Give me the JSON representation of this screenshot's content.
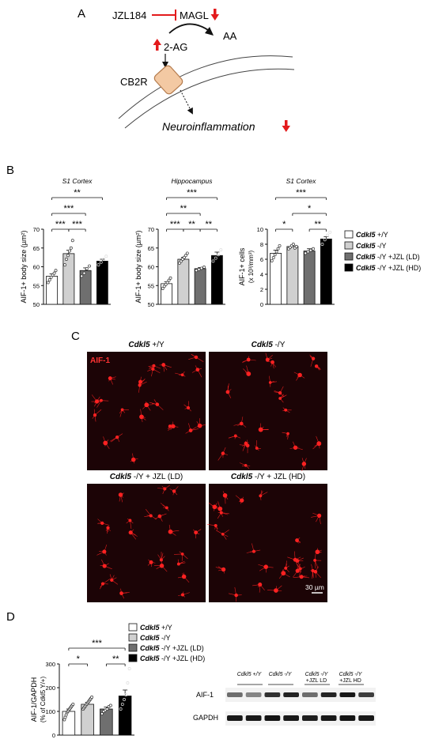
{
  "colors": {
    "wt": "#ffffff",
    "ko": "#d0d0d0",
    "ld": "#6f6f6f",
    "hd": "#000000",
    "arrow_red": "#e31a1c",
    "cb2r_fill": "#f3c9a3",
    "cb2r_stroke": "#b57c4e",
    "micro_bg": "#1c0406",
    "micro_cell": "#ff2222",
    "aif_label": "#ff3333"
  },
  "panelA": {
    "label": "A",
    "jzl": "JZL184",
    "magl": "MAGL",
    "aa": "AA",
    "two_ag": "2-AG",
    "cb2r": "CB2R",
    "neuro": "Neuroinflammation"
  },
  "panelB": {
    "label": "B"
  },
  "panelC": {
    "label": "C",
    "stain": "AIF-1",
    "titles": [
      {
        "gene": "Cdkl5",
        "rest": " +/Y"
      },
      {
        "gene": "Cdkl5",
        "rest": " -/Y"
      },
      {
        "gene": "Cdkl5",
        "rest": " -/Y + JZL (LD)"
      },
      {
        "gene": "Cdkl5",
        "rest": " -/Y + JZL (HD)"
      }
    ],
    "scale": "30 µm"
  },
  "panelD": {
    "label": "D"
  },
  "legend": {
    "gene": "Cdkl5",
    "entries": [
      " +/Y",
      " -/Y",
      " -/Y +JZL (LD)",
      " -/Y +JZL (HD)"
    ]
  },
  "chart_data": [
    {
      "type": "bar",
      "title": "S1 Cortex",
      "ylabel": "AIF-1+ body size (µm²)",
      "ylim": [
        50,
        70
      ],
      "yticks": [
        "50",
        "55",
        "60",
        "65",
        "70"
      ],
      "categories": [
        "Cdkl5 +/Y",
        "Cdkl5 -/Y",
        "Cdkl5 -/Y +JZL (LD)",
        "Cdkl5 -/Y +JZL (HD)"
      ],
      "values": [
        57.5,
        63.5,
        59.0,
        61.5
      ],
      "errors": [
        0.6,
        0.9,
        0.7,
        0.5
      ],
      "points": [
        [
          55.8,
          56.5,
          57.2,
          57.8,
          58.3,
          59.0
        ],
        [
          60.5,
          62.0,
          63.0,
          64.2,
          65.0,
          67.0
        ],
        [
          57.5,
          58.3,
          59.5,
          60.2
        ],
        [
          60.5,
          61.2,
          62.0,
          62.8
        ]
      ],
      "significance": [
        {
          "a": 0,
          "b": 3,
          "label": "**"
        },
        {
          "a": 0,
          "b": 2,
          "label": "***"
        },
        {
          "a": 0,
          "b": 1,
          "label": "***"
        },
        {
          "a": 1,
          "b": 2,
          "label": "***"
        }
      ]
    },
    {
      "type": "bar",
      "title": "Hippocampus",
      "ylabel": "AIF-1+ body size (µm²)",
      "ylim": [
        50,
        70
      ],
      "yticks": [
        "50",
        "55",
        "60",
        "65",
        "70"
      ],
      "categories": [
        "Cdkl5 +/Y",
        "Cdkl5 -/Y",
        "Cdkl5 -/Y +JZL (LD)",
        "Cdkl5 -/Y +JZL (HD)"
      ],
      "values": [
        55.5,
        62.0,
        59.5,
        63.0
      ],
      "errors": [
        0.5,
        0.5,
        0.3,
        0.9
      ],
      "points": [
        [
          54.2,
          54.8,
          55.3,
          55.8,
          56.4,
          57.0
        ],
        [
          61.0,
          61.5,
          62.0,
          62.5,
          63.0,
          63.6
        ],
        [
          59.0,
          59.3,
          59.6,
          59.9
        ],
        [
          61.5,
          62.3,
          63.2,
          64.5
        ]
      ],
      "significance": [
        {
          "a": 0,
          "b": 3,
          "label": "***"
        },
        {
          "a": 0,
          "b": 2,
          "label": "**"
        },
        {
          "a": 0,
          "b": 1,
          "label": "***"
        },
        {
          "a": 1,
          "b": 2,
          "label": "**"
        },
        {
          "a": 2,
          "b": 3,
          "label": "**"
        }
      ]
    },
    {
      "type": "bar",
      "title": "S1 Cortex",
      "ylabel": "AIF-1+ cells",
      "ylabel2": "(x 10³/mm³)",
      "ylim": [
        0,
        10
      ],
      "yticks": [
        "0",
        "2",
        "4",
        "6",
        "8",
        "10"
      ],
      "categories": [
        "Cdkl5 +/Y",
        "Cdkl5 -/Y",
        "Cdkl5 -/Y +JZL (LD)",
        "Cdkl5 -/Y +JZL (HD)"
      ],
      "values": [
        6.8,
        7.7,
        7.1,
        8.7
      ],
      "errors": [
        0.4,
        0.2,
        0.3,
        0.3
      ],
      "points": [
        [
          5.8,
          6.2,
          6.6,
          7.0,
          7.4,
          7.8
        ],
        [
          7.4,
          7.6,
          7.8,
          8.0,
          7.5,
          7.7
        ],
        [
          6.8,
          7.0,
          7.2,
          7.4
        ],
        [
          8.0,
          8.6,
          9.2,
          9.6
        ]
      ],
      "significance": [
        {
          "a": 0,
          "b": 3,
          "label": "***"
        },
        {
          "a": 1,
          "b": 3,
          "label": "*"
        },
        {
          "a": 0,
          "b": 1,
          "label": "*"
        },
        {
          "a": 2,
          "b": 3,
          "label": "**"
        }
      ]
    },
    {
      "type": "bar",
      "title": "",
      "ylabel": "AIF-1/GAPDH",
      "ylabel2": "(% of Cdkl5 Y/+)",
      "ylim": [
        0,
        300
      ],
      "yticks": [
        "0",
        "100",
        "200",
        "300"
      ],
      "categories": [
        "Cdkl5 +/Y",
        "Cdkl5 -/Y",
        "Cdkl5 -/Y +JZL (LD)",
        "Cdkl5 -/Y +JZL (HD)"
      ],
      "values": [
        100,
        130,
        110,
        165
      ],
      "errors": [
        10,
        8,
        8,
        25
      ],
      "points": [
        [
          65,
          75,
          85,
          95,
          100,
          105,
          110,
          115,
          120,
          125,
          130
        ],
        [
          110,
          115,
          120,
          125,
          130,
          135,
          140,
          145,
          150,
          155,
          160
        ],
        [
          90,
          100,
          105,
          110,
          120,
          125
        ],
        [
          110,
          130,
          150,
          170,
          220,
          280
        ]
      ],
      "significance": [
        {
          "a": 0,
          "b": 3,
          "label": "***"
        },
        {
          "a": 0,
          "b": 1,
          "label": "*"
        },
        {
          "a": 2,
          "b": 3,
          "label": "**"
        }
      ]
    }
  ],
  "blot": {
    "groups": [
      "Cdkl5 +/Y",
      "Cdkl5 -/Y",
      "Cdkl5 -/Y",
      "Cdkl5 -/Y"
    ],
    "groups_sub": [
      "",
      "",
      "+JZL LD",
      "+JZL HD"
    ],
    "rows": [
      "AIF-1",
      "GAPDH"
    ],
    "aif_intensity": [
      0.55,
      0.45,
      0.8,
      0.85,
      0.55,
      0.85,
      0.9,
      0.75
    ],
    "gapdh_intensity": [
      0.9,
      0.9,
      0.92,
      0.9,
      0.88,
      0.9,
      0.92,
      0.9
    ]
  }
}
